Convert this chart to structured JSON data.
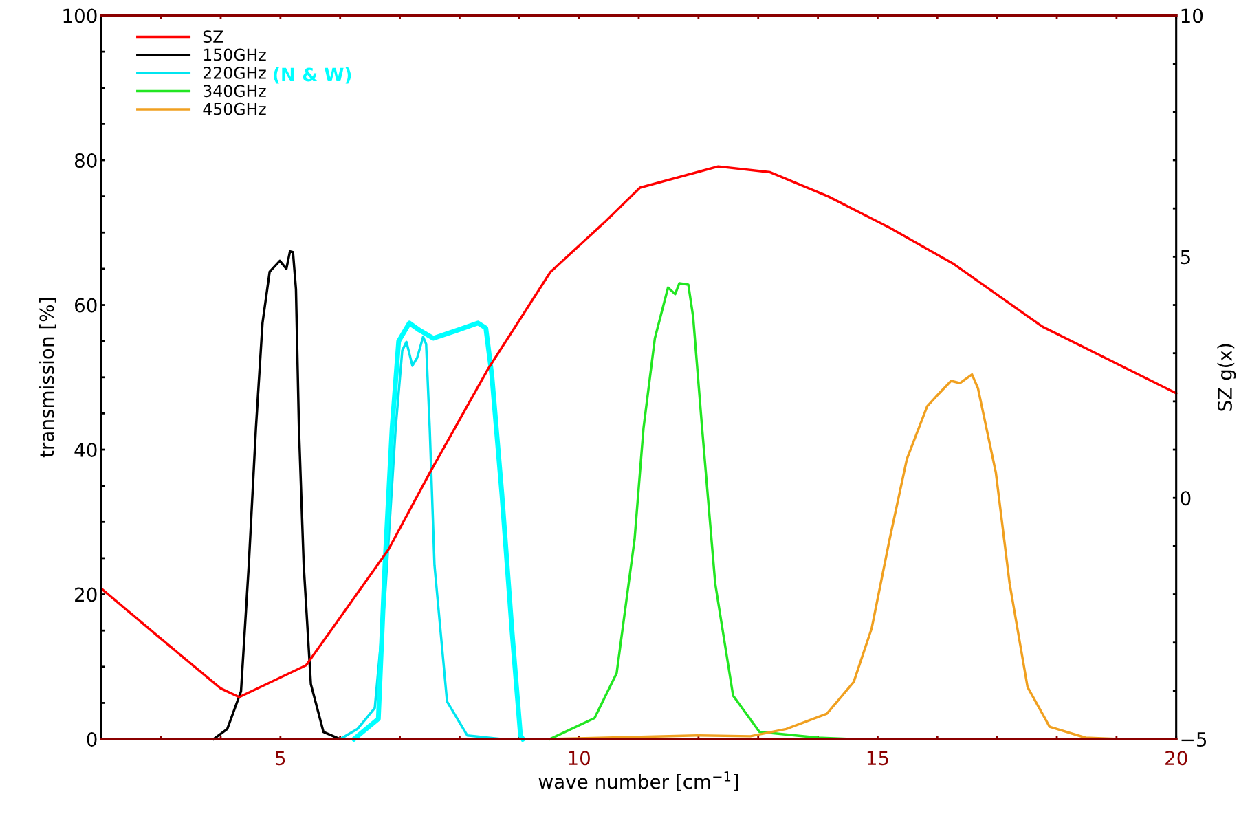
{
  "chart_data": {
    "type": "line",
    "xlabel": "wave number [cm$^{−1}$]",
    "ylabel": "transmission [%]",
    "y2label": "SZ g(x)",
    "annotations": [
      "(N & W)"
    ],
    "xlim": [
      2,
      20
    ],
    "ylim": [
      0,
      100
    ],
    "y2lim": [
      -5,
      10
    ],
    "xticks": [
      {
        "value": 2,
        "label": null
      },
      {
        "value": 3,
        "label": null
      },
      {
        "value": 4,
        "label": null
      },
      5,
      {
        "value": 6,
        "label": null
      },
      {
        "value": 7,
        "label": null
      },
      {
        "value": 8,
        "label": null
      },
      {
        "value": 9,
        "label": null
      },
      10,
      {
        "value": 11,
        "label": null
      },
      {
        "value": 12,
        "label": null
      },
      {
        "value": 13,
        "label": null
      },
      {
        "value": 14,
        "label": null
      },
      15,
      {
        "value": 16,
        "label": null
      },
      {
        "value": 17,
        "label": null
      },
      {
        "value": 18,
        "label": null
      },
      {
        "value": 19,
        "label": null
      },
      20
    ],
    "yticks": [
      0,
      {
        "value": 5,
        "label": null
      },
      {
        "value": 10,
        "label": null
      },
      {
        "value": 15,
        "label": null
      },
      20,
      {
        "value": 25,
        "label": null
      },
      {
        "value": 30,
        "label": null
      },
      {
        "value": 35,
        "label": null
      },
      40,
      {
        "value": 45,
        "label": null
      },
      {
        "value": 50,
        "label": null
      },
      {
        "value": 55,
        "label": null
      },
      60,
      {
        "value": 65,
        "label": null
      },
      {
        "value": 70,
        "label": null
      },
      {
        "value": 75,
        "label": null
      },
      80,
      {
        "value": 85,
        "label": null
      },
      {
        "value": 90,
        "label": null
      },
      {
        "value": 95,
        "label": null
      },
      100
    ],
    "y2ticks": [
      {
        "value": -5,
        "label": "−5"
      },
      {
        "value": -4,
        "label": null
      },
      {
        "value": -3,
        "label": null
      },
      {
        "value": -2,
        "label": null
      },
      {
        "value": -1,
        "label": null
      },
      0,
      {
        "value": 1,
        "label": null
      },
      {
        "value": 2,
        "label": null
      },
      {
        "value": 3,
        "label": null
      },
      {
        "value": 4,
        "label": null
      },
      5,
      {
        "value": 6,
        "label": null
      },
      {
        "value": 7,
        "label": null
      },
      {
        "value": 8,
        "label": null
      },
      {
        "value": 9,
        "label": null
      },
      10
    ],
    "legend": "top left",
    "grid": false,
    "series": [
      {
        "name": "SZ",
        "color": "#ff0000",
        "axis": "y2",
        "x": [
          2,
          3,
          4,
          4.31,
          5.43,
          6.81,
          7.51,
          8.48,
          9.52,
          10.45,
          11.02,
          12.33,
          13.2,
          14.17,
          15.2,
          16.26,
          17.76,
          20
        ],
        "values": [
          -1.88,
          -2.92,
          -3.95,
          -4.13,
          -3.47,
          -1.07,
          0.54,
          2.68,
          4.68,
          5.74,
          6.43,
          6.87,
          6.75,
          6.25,
          5.6,
          4.86,
          3.55,
          2.17
        ]
      },
      {
        "name": "150GHz",
        "color": "#000000",
        "x": [
          3.88,
          4.11,
          4.34,
          4.47,
          4.59,
          4.7,
          4.82,
          4.99,
          5.1,
          5.16,
          5.21,
          5.26,
          5.31,
          5.39,
          5.51,
          5.72,
          6.0,
          7.0
        ],
        "values": [
          0,
          1.4,
          6.6,
          24,
          43,
          57.5,
          64.6,
          66.1,
          65,
          67.4,
          67.3,
          62.2,
          43,
          24,
          7.6,
          1,
          0,
          0
        ]
      },
      {
        "name": "220GHz",
        "color": "#00e5f0",
        "x": [
          6.0,
          6.29,
          6.58,
          6.75,
          6.93,
          7.04,
          7.11,
          7.21,
          7.29,
          7.39,
          7.44,
          7.5,
          7.58,
          7.79,
          8.13,
          8.7,
          9.9
        ],
        "values": [
          0,
          1.4,
          4.3,
          19.5,
          43,
          53.7,
          54.9,
          51.6,
          52.7,
          55.6,
          54.6,
          43,
          24,
          5.2,
          0.5,
          0,
          0
        ]
      },
      {
        "color": "#00ffff",
        "x": [
          6.23,
          6.64,
          6.75,
          6.87,
          6.98,
          7.16,
          7.33,
          7.56,
          7.96,
          8.31,
          8.44,
          8.54,
          8.71,
          8.88,
          9.02,
          9.06
        ],
        "values": [
          0,
          2.8,
          24,
          43,
          55,
          57.5,
          56.5,
          55.4,
          56.5,
          57.5,
          56.8,
          50.3,
          33.7,
          14.7,
          0.5,
          0
        ]
      },
      {
        "name": "340GHz",
        "color": "#22e622",
        "x": [
          9.51,
          10.26,
          10.63,
          10.93,
          11.08,
          11.27,
          11.49,
          11.61,
          11.68,
          11.83,
          11.91,
          12.06,
          12.28,
          12.58,
          13.02,
          14.0,
          14.6
        ],
        "values": [
          0,
          2.9,
          9.1,
          27.6,
          43,
          55.4,
          62.4,
          61.5,
          63,
          62.8,
          58.4,
          43,
          21.5,
          6,
          1,
          0.2,
          0
        ]
      },
      {
        "name": "450GHz",
        "color": "#f0a020",
        "x": [
          9.51,
          11.98,
          12.87,
          13.47,
          14.15,
          14.6,
          14.9,
          15.2,
          15.49,
          15.83,
          16.02,
          16.23,
          16.38,
          16.58,
          16.68,
          16.98,
          17.21,
          17.51,
          17.88,
          18.48,
          19.1
        ],
        "values": [
          0,
          0.5,
          0.4,
          1.4,
          3.5,
          7.9,
          15.3,
          27.6,
          38.7,
          46,
          47.7,
          49.5,
          49.2,
          50.4,
          48.5,
          36.8,
          21.5,
          7.2,
          1.7,
          0.2,
          0
        ]
      }
    ]
  }
}
